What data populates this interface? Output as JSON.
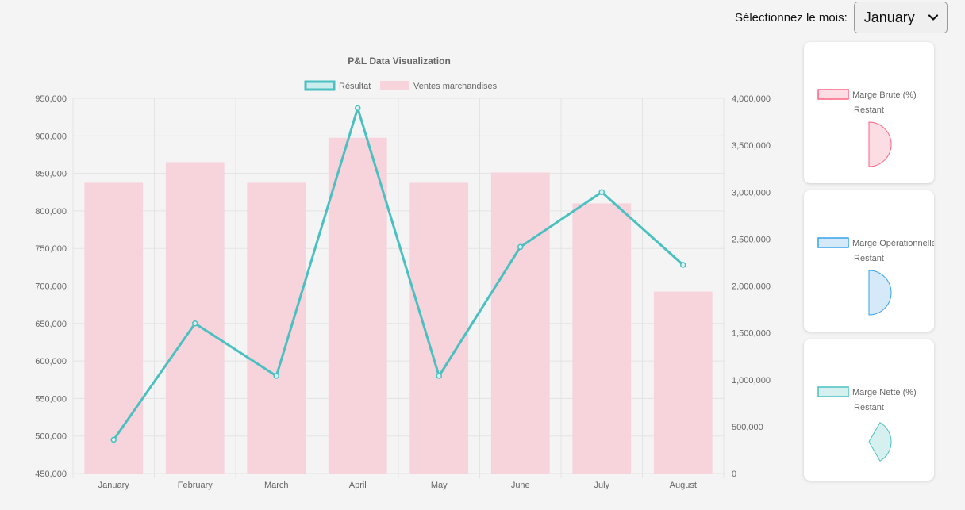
{
  "month_selector": {
    "label": "Sélectionnez le mois:",
    "selected": "January"
  },
  "chart_data": [
    {
      "type": "bar",
      "title": "P&L Data Visualization",
      "categories": [
        "January",
        "February",
        "March",
        "April",
        "May",
        "June",
        "July",
        "August"
      ],
      "series": [
        {
          "name": "Résultat",
          "type": "line",
          "axis": "left",
          "color": "#4bc0c0",
          "values": [
            495000,
            650000,
            580000,
            937000,
            580000,
            752000,
            825000,
            728000
          ]
        },
        {
          "name": "Ventes marchandises",
          "type": "bar",
          "axis": "right",
          "color": "#f7d4dc",
          "values": [
            3100000,
            3320000,
            3100000,
            3580000,
            3100000,
            3210000,
            2880000,
            1940000
          ]
        }
      ],
      "y_left": {
        "range": [
          450000,
          950000
        ],
        "ticks": [
          "950,000",
          "900,000",
          "850,000",
          "800,000",
          "750,000",
          "700,000",
          "650,000",
          "600,000",
          "550,000",
          "500,000",
          "450,000"
        ]
      },
      "y_right": {
        "range": [
          0,
          4000000
        ],
        "ticks": [
          "4,000,000",
          "3,500,000",
          "3,000,000",
          "2,500,000",
          "2,000,000",
          "1,500,000",
          "1,000,000",
          "500,000",
          "0"
        ]
      },
      "grid": true,
      "legend": "top"
    },
    {
      "type": "pie",
      "legend": "top",
      "labels": [
        "Marge Brute (%)",
        "Restant"
      ],
      "color": "#ff6384",
      "fill": "#fbdde3",
      "start_deg": 0,
      "sweep_deg": 180
    },
    {
      "type": "pie",
      "legend": "top",
      "labels": [
        "Marge Opérationnelle",
        "Restant"
      ],
      "color": "#36a2eb",
      "fill": "#d6e9f8",
      "start_deg": 0,
      "sweep_deg": 180
    },
    {
      "type": "pie",
      "legend": "top",
      "labels": [
        "Marge Nette (%)",
        "Restant"
      ],
      "color": "#4bc0c0",
      "fill": "#d5f0ef",
      "start_deg": 30,
      "sweep_deg": 120
    }
  ]
}
